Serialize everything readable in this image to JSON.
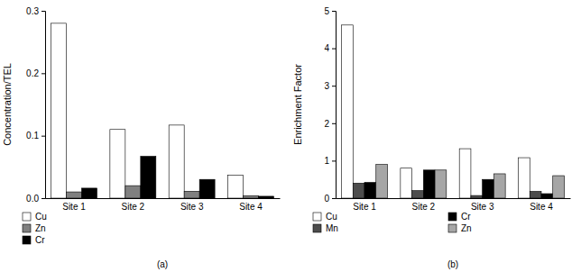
{
  "chart_data": [
    {
      "type": "bar",
      "title": "(a)",
      "y_label": "Concentration/TEL",
      "categories": [
        "Site 1",
        "Site 2",
        "Site 3",
        "Site 4"
      ],
      "series": [
        {
          "name": "Cu",
          "color": "#ffffff",
          "values": [
            0.28,
            0.11,
            0.117,
            0.037
          ]
        },
        {
          "name": "Zn",
          "color": "#808080",
          "values": [
            0.01,
            0.02,
            0.011,
            0.004
          ]
        },
        {
          "name": "Cr",
          "color": "#000000",
          "values": [
            0.016,
            0.067,
            0.03,
            0.003
          ]
        }
      ],
      "ylim": [
        0,
        0.3
      ],
      "yticks": [
        {
          "value": 0,
          "label": "0.0"
        },
        0.1,
        0.2,
        0.3
      ],
      "grid": false,
      "legend": "bottom"
    },
    {
      "type": "bar",
      "title": "(b)",
      "y_label": "Enrichment Factor",
      "categories": [
        "Site 1",
        "Site 2",
        "Site 3",
        "Site 4"
      ],
      "series": [
        {
          "name": "Cu",
          "color": "#ffffff",
          "values": [
            4.62,
            0.8,
            1.32,
            1.08
          ]
        },
        {
          "name": "Mn",
          "color": "#4d4d4d",
          "values": [
            0.4,
            0.2,
            0.07,
            0.18
          ]
        },
        {
          "name": "Cr",
          "color": "#000000",
          "values": [
            0.42,
            0.75,
            0.5,
            0.12
          ]
        },
        {
          "name": "Zn",
          "color": "#a6a6a6",
          "values": [
            0.9,
            0.75,
            0.65,
            0.6
          ]
        }
      ],
      "ylim": [
        0,
        5
      ],
      "yticks": [
        0,
        1,
        2,
        3,
        4,
        5
      ],
      "grid": false,
      "legend": "bottom"
    }
  ]
}
